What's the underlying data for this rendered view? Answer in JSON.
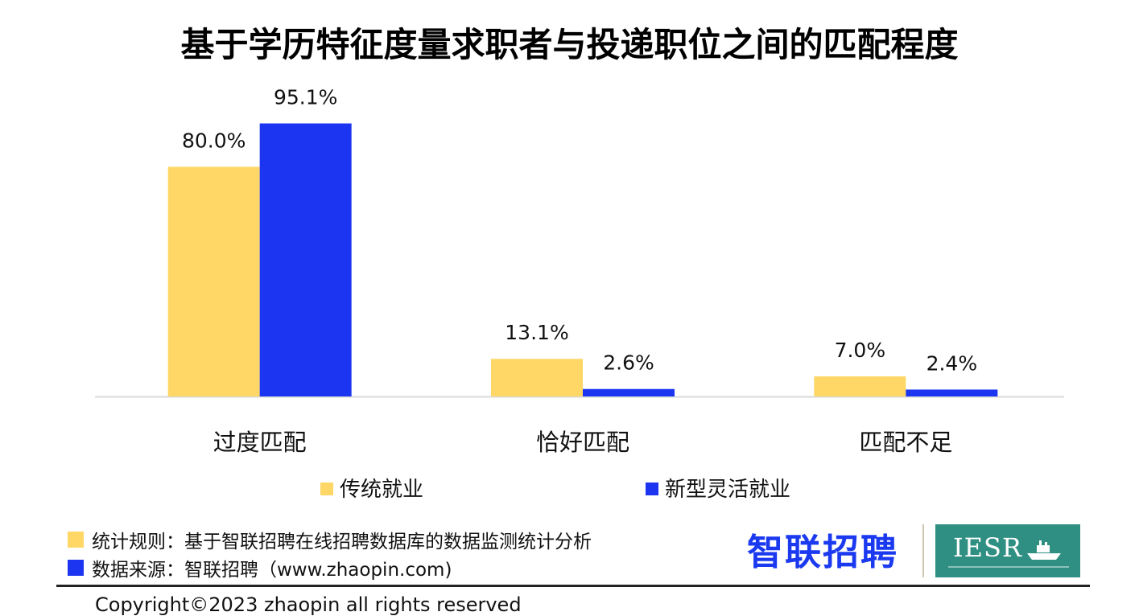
{
  "chart_data": {
    "type": "bar",
    "title": "基于学历特征度量求职者与投递职位之间的匹配程度",
    "categories": [
      "过度匹配",
      "恰好匹配",
      "匹配不足"
    ],
    "series": [
      {
        "name": "传统就业",
        "values": [
          80.0,
          13.1,
          7.0
        ],
        "labels": [
          "80.0%",
          "13.1%",
          "7.0%"
        ],
        "color": "#ffd766"
      },
      {
        "name": "新型灵活就业",
        "values": [
          95.1,
          2.6,
          2.4
        ],
        "labels": [
          "95.1%",
          "2.6%",
          "2.4%"
        ],
        "color": "#1c35f0"
      }
    ],
    "unit": "%",
    "ylim": [
      0,
      100
    ],
    "grid": false,
    "legend_position": "bottom"
  },
  "footer": {
    "notes": [
      {
        "text": "统计规则：基于智联招聘在线招聘数据库的数据监测统计分析",
        "color": "#ffd766"
      },
      {
        "text": "数据来源：智联招聘（www.zhaopin.com)",
        "color": "#1c35f0"
      }
    ],
    "brand_logo_text": "智联招聘",
    "partner_logo_text": "IESR",
    "partner_logo_icon": "boat-icon",
    "copyright": "Copyright©2023 zhaopin all rights reserved"
  }
}
